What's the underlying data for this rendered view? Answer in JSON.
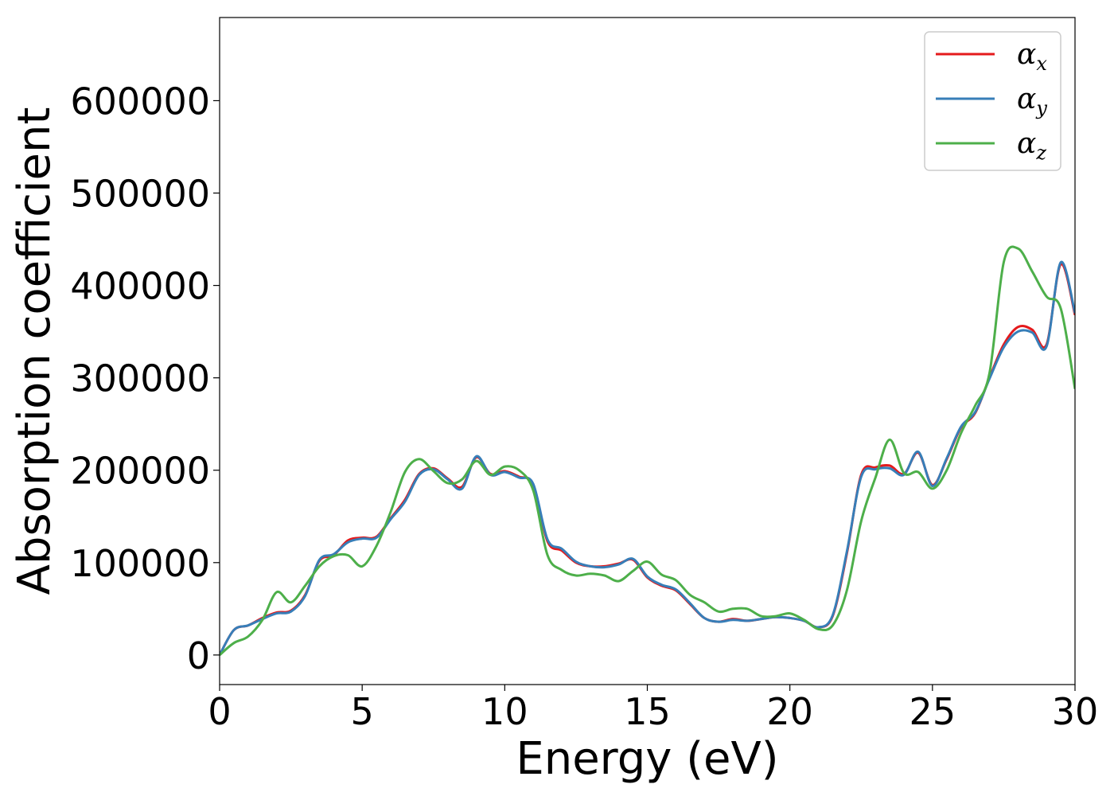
{
  "chart_data": {
    "type": "line",
    "title": "",
    "xlabel": "Energy (eV)",
    "ylabel": "Absorption coefficient",
    "xlim": [
      0,
      30
    ],
    "ylim": [
      -32000,
      690000
    ],
    "xticks": [
      0,
      5,
      10,
      15,
      20,
      25,
      30
    ],
    "yticks": [
      0,
      100000,
      200000,
      300000,
      400000,
      500000,
      600000
    ],
    "xtick_labels": [
      "0",
      "5",
      "10",
      "15",
      "20",
      "25",
      "30"
    ],
    "ytick_labels": [
      "0",
      "100000",
      "200000",
      "300000",
      "400000",
      "500000",
      "600000"
    ],
    "grid": false,
    "legend_position": "top-right",
    "x": [
      0,
      0.5,
      1,
      1.5,
      2,
      2.5,
      3,
      3.5,
      4,
      4.5,
      5,
      5.5,
      6,
      6.5,
      7,
      7.5,
      8,
      8.5,
      9,
      9.5,
      10,
      10.5,
      11,
      11.5,
      12,
      12.5,
      13,
      13.5,
      14,
      14.5,
      15,
      15.5,
      16,
      16.5,
      17,
      17.5,
      18,
      18.5,
      19,
      19.5,
      20,
      20.5,
      21,
      21.5,
      22,
      22.5,
      23,
      23.5,
      24,
      24.5,
      25,
      25.5,
      26,
      26.5,
      27,
      27.5,
      28,
      28.5,
      29,
      29.5,
      30
    ],
    "series": [
      {
        "name": "α",
        "subscript": "x",
        "color": "#e41a1c",
        "values": [
          0,
          27000,
          32000,
          40000,
          46000,
          48000,
          65000,
          102000,
          108000,
          124000,
          127000,
          128000,
          148000,
          168000,
          196000,
          202000,
          191000,
          182000,
          214000,
          196000,
          199000,
          193000,
          184000,
          123000,
          113000,
          100000,
          96000,
          96000,
          99000,
          103000,
          84000,
          75000,
          70000,
          55000,
          40000,
          36000,
          39000,
          37000,
          39000,
          41000,
          40000,
          37000,
          30000,
          42000,
          110000,
          195000,
          203000,
          205000,
          196000,
          219000,
          184000,
          212000,
          246000,
          262000,
          300000,
          336000,
          355000,
          352000,
          336000,
          423000,
          368000
        ]
      },
      {
        "name": "α",
        "subscript": "y",
        "color": "#377eb8",
        "values": [
          0,
          27000,
          32000,
          39000,
          45000,
          47000,
          64000,
          103000,
          109000,
          122000,
          126000,
          127000,
          147000,
          166000,
          195000,
          201000,
          190000,
          180000,
          215000,
          195000,
          198000,
          192000,
          185000,
          125000,
          115000,
          101000,
          96000,
          95000,
          98000,
          104000,
          85000,
          76000,
          71000,
          56000,
          40000,
          36000,
          38000,
          37000,
          39000,
          41000,
          40000,
          37000,
          30000,
          43000,
          112000,
          193000,
          201000,
          202000,
          195000,
          220000,
          183000,
          213000,
          247000,
          263000,
          299000,
          333000,
          350000,
          349000,
          334000,
          425000,
          370000
        ]
      },
      {
        "name": "α",
        "subscript": "z",
        "color": "#4daf4a",
        "values": [
          0,
          13000,
          20000,
          38000,
          68000,
          57000,
          75000,
          96000,
          107000,
          108000,
          96000,
          118000,
          155000,
          198000,
          212000,
          199000,
          186000,
          190000,
          210000,
          195000,
          204000,
          200000,
          178000,
          108000,
          92000,
          86000,
          88000,
          86000,
          80000,
          91000,
          101000,
          87000,
          81000,
          65000,
          57000,
          47000,
          50000,
          50000,
          42000,
          42000,
          45000,
          38000,
          28000,
          32000,
          70000,
          145000,
          192000,
          233000,
          197000,
          198000,
          180000,
          200000,
          240000,
          270000,
          305000,
          425000,
          440000,
          415000,
          388000,
          375000,
          288000
        ]
      }
    ]
  },
  "axes": {
    "spine_color": "#000000"
  }
}
